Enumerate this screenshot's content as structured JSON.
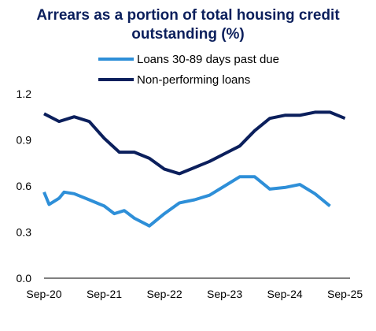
{
  "title_line1": "Arrears as a portion of total housing credit",
  "title_line2": "outstanding (%)",
  "chart_data": {
    "type": "line",
    "title": "Arrears as a portion of total housing credit outstanding (%)",
    "xlabel": "",
    "ylabel": "",
    "ylim": [
      0,
      1.2
    ],
    "yticks": [
      0.0,
      0.3,
      0.6,
      0.9,
      1.2
    ],
    "ytick_labels": [
      "0.0",
      "0.3",
      "0.6",
      "0.9",
      "1.2"
    ],
    "xlim": [
      "2020-09",
      "2025-10"
    ],
    "xticks": [
      "2020-09",
      "2021-09",
      "2022-09",
      "2023-09",
      "2024-09",
      "2025-09"
    ],
    "xtick_labels": [
      "Sep-20",
      "Sep-21",
      "Sep-22",
      "Sep-23",
      "Sep-24",
      "Sep-25"
    ],
    "grid": false,
    "legend": "top",
    "series": [
      {
        "name": "Loans 30-89 days past due",
        "color": "#2e8fd8",
        "points": [
          [
            "2020-09",
            0.56
          ],
          [
            "2020-10",
            0.48
          ],
          [
            "2020-12",
            0.52
          ],
          [
            "2021-01",
            0.56
          ],
          [
            "2021-03",
            0.55
          ],
          [
            "2021-06",
            0.51
          ],
          [
            "2021-09",
            0.47
          ],
          [
            "2021-11",
            0.42
          ],
          [
            "2022-01",
            0.44
          ],
          [
            "2022-03",
            0.39
          ],
          [
            "2022-06",
            0.34
          ],
          [
            "2022-09",
            0.42
          ],
          [
            "2022-12",
            0.49
          ],
          [
            "2023-03",
            0.51
          ],
          [
            "2023-06",
            0.54
          ],
          [
            "2023-09",
            0.6
          ],
          [
            "2023-12",
            0.66
          ],
          [
            "2024-03",
            0.66
          ],
          [
            "2024-06",
            0.58
          ],
          [
            "2024-09",
            0.59
          ],
          [
            "2024-12",
            0.61
          ],
          [
            "2025-03",
            0.55
          ],
          [
            "2025-06",
            0.47
          ]
        ]
      },
      {
        "name": "Non-performing loans",
        "color": "#0b1f5c",
        "points": [
          [
            "2020-09",
            1.07
          ],
          [
            "2020-12",
            1.02
          ],
          [
            "2021-03",
            1.05
          ],
          [
            "2021-06",
            1.02
          ],
          [
            "2021-09",
            0.91
          ],
          [
            "2021-12",
            0.82
          ],
          [
            "2022-03",
            0.82
          ],
          [
            "2022-06",
            0.78
          ],
          [
            "2022-09",
            0.71
          ],
          [
            "2022-12",
            0.68
          ],
          [
            "2023-03",
            0.72
          ],
          [
            "2023-06",
            0.76
          ],
          [
            "2023-09",
            0.81
          ],
          [
            "2023-12",
            0.86
          ],
          [
            "2024-03",
            0.96
          ],
          [
            "2024-06",
            1.04
          ],
          [
            "2024-09",
            1.06
          ],
          [
            "2024-12",
            1.06
          ],
          [
            "2025-03",
            1.08
          ],
          [
            "2025-06",
            1.08
          ],
          [
            "2025-09",
            1.04
          ]
        ]
      }
    ]
  }
}
